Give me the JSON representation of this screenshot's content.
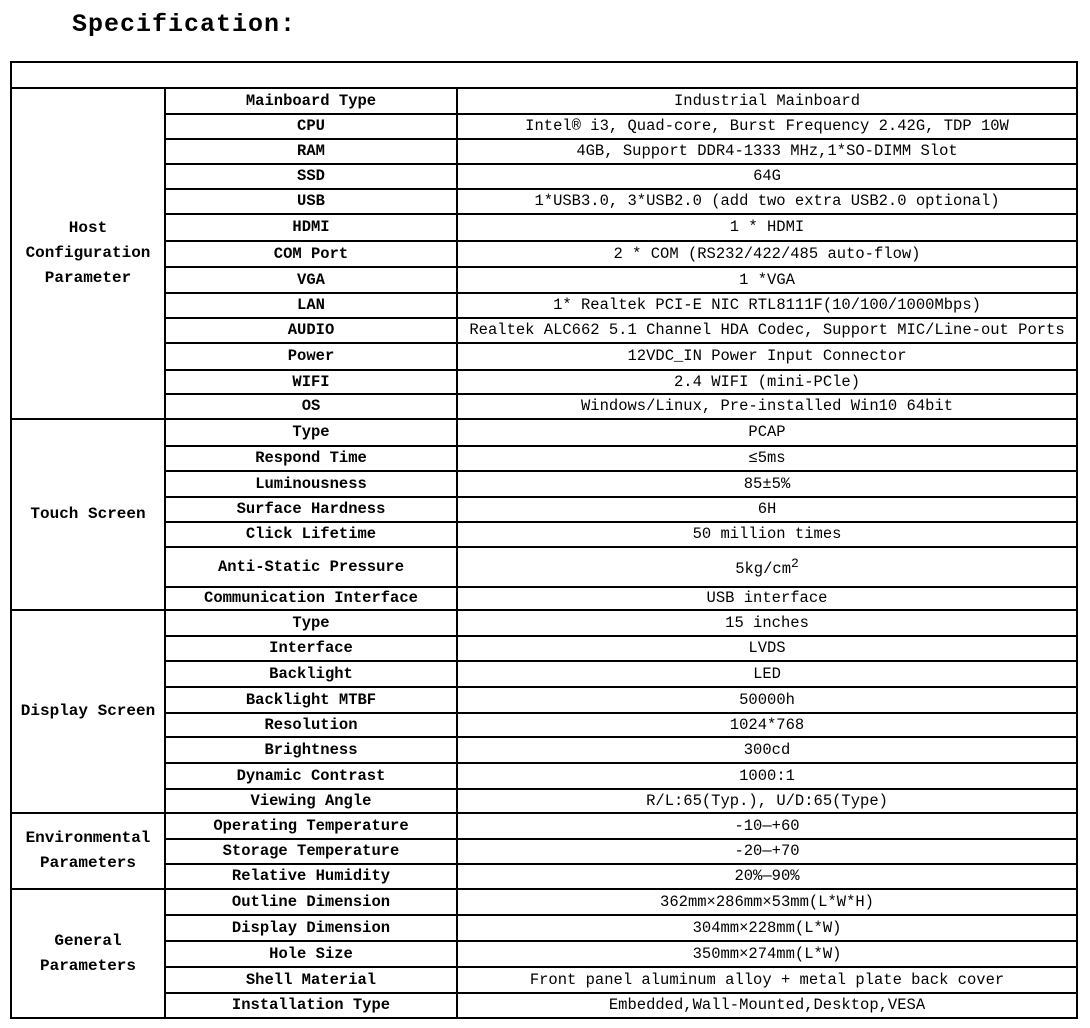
{
  "title": "Specification:",
  "header_row": "",
  "groups": [
    {
      "name": "Host Configuration Parameter",
      "rows": [
        {
          "label": "Mainboard Type",
          "value": "Industrial Mainboard"
        },
        {
          "label": "CPU",
          "value": "Intel® i3, Quad-core, Burst Frequency 2.42G, TDP 10W"
        },
        {
          "label": "RAM",
          "value": "4GB, Support DDR4-1333 MHz,1*SO-DIMM Slot"
        },
        {
          "label": "SSD",
          "value": "64G"
        },
        {
          "label": "USB",
          "value": "1*USB3.0, 3*USB2.0 (add two extra USB2.0 optional)"
        },
        {
          "label": "HDMI",
          "value": "1 * HDMI"
        },
        {
          "label": "COM Port",
          "value": "2 * COM (RS232/422/485 auto-flow)"
        },
        {
          "label": "VGA",
          "value": "1 *VGA"
        },
        {
          "label": "LAN",
          "value": "1* Realtek PCI-E NIC RTL8111F(10/100/1000Mbps)"
        },
        {
          "label": "AUDIO",
          "value": "Realtek ALC662 5.1 Channel HDA Codec, Support MIC/Line-out Ports"
        },
        {
          "label": "Power",
          "value": "12VDC_IN Power Input Connector"
        },
        {
          "label": "WIFI",
          "value": "2.4 WIFI (mini-PCle)"
        },
        {
          "label": "OS",
          "value": "Windows/Linux, Pre-installed Win10 64bit"
        }
      ]
    },
    {
      "name": "Touch Screen",
      "rows": [
        {
          "label": "Type",
          "value": "PCAP"
        },
        {
          "label": "Respond Time",
          "value": "≤5ms"
        },
        {
          "label": "Luminousness",
          "value": "85±5%"
        },
        {
          "label": "Surface Hardness",
          "value": "6H"
        },
        {
          "label": "Click Lifetime",
          "value": "50 million times"
        },
        {
          "label": "Anti-Static Pressure",
          "value": "5kg/cm",
          "sup": "2"
        },
        {
          "label": "Communication Interface",
          "value": "USB interface"
        }
      ]
    },
    {
      "name": "Display Screen",
      "rows": [
        {
          "label": "Type",
          "value": "15 inches"
        },
        {
          "label": "Interface",
          "value": "LVDS"
        },
        {
          "label": "Backlight",
          "value": "LED"
        },
        {
          "label": "Backlight MTBF",
          "value": "50000h"
        },
        {
          "label": "Resolution",
          "value": "1024*768"
        },
        {
          "label": "Brightness",
          "value": "300cd"
        },
        {
          "label": "Dynamic Contrast",
          "value": "1000:1"
        },
        {
          "label": "Viewing Angle",
          "value": "R/L:65(Typ.), U/D:65(Type)"
        }
      ]
    },
    {
      "name": "Environmental Parameters",
      "rows": [
        {
          "label": "Operating Temperature",
          "value": "-10—+60"
        },
        {
          "label": "Storage Temperature",
          "value": "-20—+70"
        },
        {
          "label": "Relative Humidity",
          "value": "20%—90%"
        }
      ]
    },
    {
      "name": "General Parameters",
      "rows": [
        {
          "label": "Outline Dimension",
          "value": "362mm×286mm×53mm(L*W*H)"
        },
        {
          "label": "Display Dimension",
          "value": "304mm×228mm(L*W)"
        },
        {
          "label": "Hole Size",
          "value": "350mm×274mm(L*W)"
        },
        {
          "label": "Shell Material",
          "value": "Front panel aluminum alloy + metal plate back cover"
        },
        {
          "label": "Installation Type",
          "value": "Embedded,Wall-Mounted,Desktop,VESA"
        }
      ]
    }
  ]
}
